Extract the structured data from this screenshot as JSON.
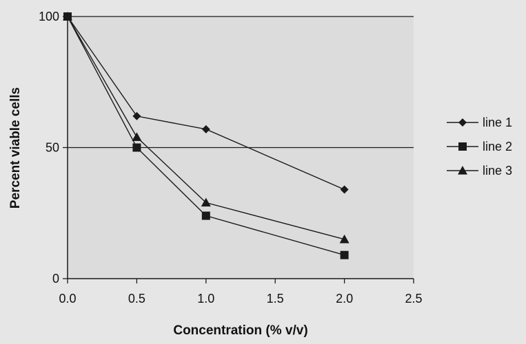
{
  "chart_data": {
    "type": "line",
    "xlabel": "Concentration (% v/v)",
    "ylabel": "Percent viable cells",
    "xlim": [
      0,
      2.5
    ],
    "ylim": [
      0,
      100
    ],
    "x_ticks": [
      "0.0",
      "0.5",
      "1.0",
      "1.5",
      "2.0",
      "2.5"
    ],
    "y_ticks": [
      "0",
      "50",
      "100"
    ],
    "gridlines_y": [
      50,
      100
    ],
    "legend_position": "right",
    "series": [
      {
        "name": "line 1",
        "marker": "diamond",
        "color": "#1a1a1a",
        "x": [
          0,
          0.5,
          1.0,
          2.0
        ],
        "values": [
          100,
          62,
          57,
          34
        ]
      },
      {
        "name": "line 2",
        "marker": "square",
        "color": "#1a1a1a",
        "x": [
          0,
          0.5,
          1.0,
          2.0
        ],
        "values": [
          100,
          50,
          24,
          9
        ]
      },
      {
        "name": "line 3",
        "marker": "triangle",
        "color": "#1a1a1a",
        "x": [
          0,
          0.5,
          1.0,
          2.0
        ],
        "values": [
          100,
          54,
          29,
          15
        ]
      }
    ]
  }
}
